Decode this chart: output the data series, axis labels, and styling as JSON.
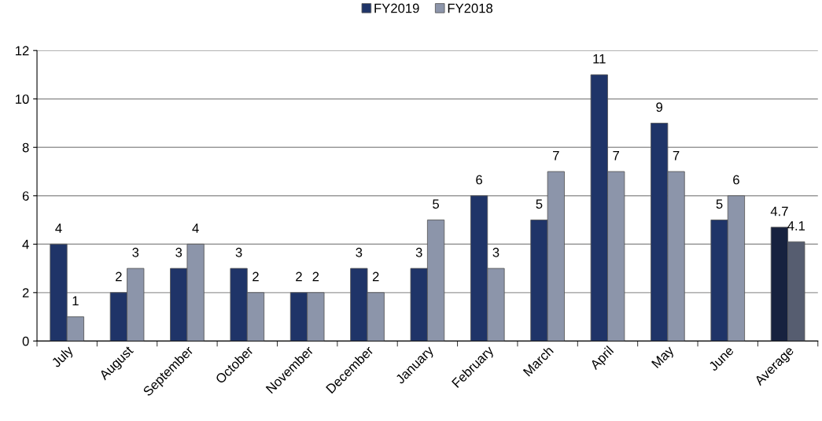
{
  "chart_data": {
    "type": "bar",
    "categories": [
      "July",
      "August",
      "September",
      "October",
      "November",
      "December",
      "January",
      "February",
      "March",
      "April",
      "May",
      "June",
      "Average"
    ],
    "series": [
      {
        "name": "FY2019",
        "color": "#1f3468",
        "colors": [
          "#1f3468",
          "#1f3468",
          "#1f3468",
          "#1f3468",
          "#1f3468",
          "#1f3468",
          "#1f3468",
          "#1f3468",
          "#1f3468",
          "#1f3468",
          "#1f3468",
          "#1f3468",
          "#17223f"
        ],
        "values": [
          4,
          2,
          3,
          3,
          2,
          3,
          3,
          6,
          5,
          11,
          9,
          5,
          4.7
        ]
      },
      {
        "name": "FY2018",
        "color": "#8c95aa",
        "colors": [
          "#8c95aa",
          "#8c95aa",
          "#8c95aa",
          "#8c95aa",
          "#8c95aa",
          "#8c95aa",
          "#8c95aa",
          "#8c95aa",
          "#8c95aa",
          "#8c95aa",
          "#8c95aa",
          "#8c95aa",
          "#565d70"
        ],
        "values": [
          1,
          3,
          4,
          2,
          2,
          2,
          5,
          3,
          7,
          7,
          7,
          6,
          4.1
        ]
      }
    ],
    "ylim": [
      0,
      12
    ],
    "yticks": [
      0,
      2,
      4,
      6,
      8,
      10,
      12
    ],
    "grid": "y",
    "legend": "top",
    "data_labels": true
  }
}
